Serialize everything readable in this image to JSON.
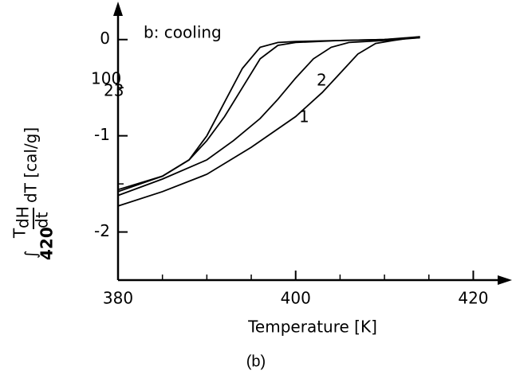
{
  "chart_data": {
    "type": "line",
    "title": "b: cooling",
    "xlabel": "Temperature [K]",
    "ylabel": {
      "integral": "∫",
      "upper": "T",
      "lower": "420",
      "numerator": "dH",
      "denominator": "dt",
      "rest": "dT [cal/g]"
    },
    "caption": "(b)",
    "xlim": [
      380,
      424
    ],
    "ylim": [
      -2.5,
      0.37
    ],
    "xticks": [
      380,
      400,
      420
    ],
    "xminor": [
      385,
      390,
      395,
      405,
      410,
      415
    ],
    "yticks": [
      0,
      -1,
      -2
    ],
    "yminor": [
      -0.5,
      -1.5
    ],
    "color": "#000000",
    "series": [
      {
        "name": "100",
        "x": [
          380,
          385,
          388,
          390,
          392,
          394,
          396,
          398,
          400,
          405,
          410,
          414
        ],
        "values": [
          -1.56,
          -1.42,
          -1.25,
          -1.0,
          -0.65,
          -0.3,
          -0.08,
          -0.03,
          -0.02,
          -0.01,
          0,
          0.02
        ]
      },
      {
        "name": "23",
        "x": [
          380,
          385,
          388,
          390,
          392,
          394,
          396,
          398,
          400,
          405,
          410,
          414
        ],
        "values": [
          -1.58,
          -1.42,
          -1.25,
          -1.05,
          -0.8,
          -0.5,
          -0.2,
          -0.06,
          -0.03,
          -0.01,
          0,
          0.03
        ]
      },
      {
        "name": "2",
        "x": [
          380,
          385,
          390,
          393,
          396,
          398,
          400,
          402,
          404,
          406,
          410,
          414
        ],
        "values": [
          -1.62,
          -1.45,
          -1.25,
          -1.05,
          -0.82,
          -0.62,
          -0.4,
          -0.2,
          -0.08,
          -0.03,
          -0.01,
          0.02
        ]
      },
      {
        "name": "1",
        "x": [
          380,
          385,
          390,
          395,
          400,
          403,
          405,
          407,
          409,
          411,
          414
        ],
        "values": [
          -1.73,
          -1.58,
          -1.4,
          -1.12,
          -0.8,
          -0.55,
          -0.35,
          -0.15,
          -0.04,
          -0.01,
          0.03
        ]
      }
    ]
  }
}
